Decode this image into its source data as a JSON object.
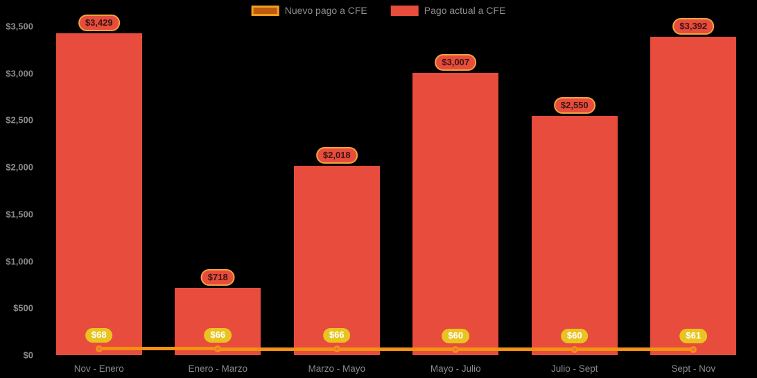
{
  "chart_data": {
    "type": "bar",
    "title": "",
    "categories": [
      "Nov - Enero",
      "Enero - Marzo",
      "Marzo - Mayo",
      "Mayo - Julio",
      "Julio - Sept",
      "Sept - Nov"
    ],
    "series": [
      {
        "name": "Nuevo pago a CFE",
        "type": "line",
        "values": [
          68,
          66,
          66,
          60,
          60,
          61
        ],
        "labels": [
          "$68",
          "$66",
          "$66",
          "$60",
          "$60",
          "$61"
        ]
      },
      {
        "name": "Pago actual a CFE",
        "type": "bar",
        "values": [
          3429,
          718,
          2018,
          3007,
          2550,
          3392
        ],
        "labels": [
          "$3,429",
          "$718",
          "$2,018",
          "$3,007",
          "$2,550",
          "$3,392"
        ]
      }
    ],
    "xlabel": "",
    "ylabel": "",
    "ylim": [
      0,
      3500
    ],
    "yticks": [
      {
        "value": 0,
        "label": "$0"
      },
      {
        "value": 500,
        "label": "$500"
      },
      {
        "value": 1000,
        "label": "$1,000"
      },
      {
        "value": 1500,
        "label": "$1,500"
      },
      {
        "value": 2000,
        "label": "$2,000"
      },
      {
        "value": 2500,
        "label": "$2,500"
      },
      {
        "value": 3000,
        "label": "$3,000"
      },
      {
        "value": 3500,
        "label": "$3,500"
      }
    ],
    "legend_position": "top",
    "grid": false
  },
  "colors": {
    "background": "#000000",
    "bar": "#e74c3c",
    "line": "#f39112",
    "marker_fill": "#f2685c",
    "marker_ring": "#f39112",
    "bar_label_bg": "#e74c3c",
    "bar_label_border": "#f2a33c",
    "bar_label_text": "#3a1610",
    "line_label_bg": "#e9c420",
    "line_label_text": "#ffffff",
    "legend_new_fill": "#bc5a10",
    "legend_new_border": "#f49d1d",
    "axis_text": "#8a8a8a"
  }
}
